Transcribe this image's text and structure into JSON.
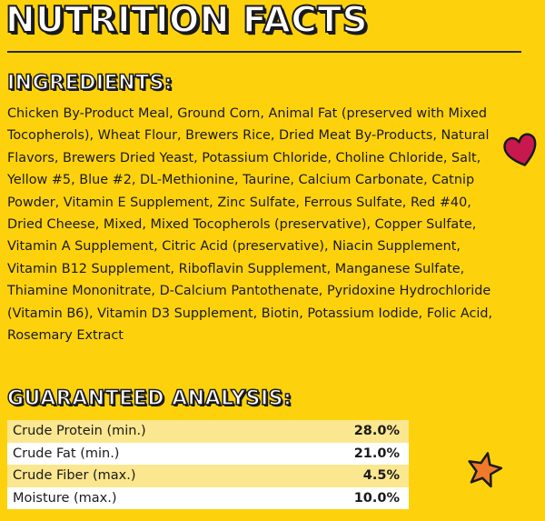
{
  "title": "NUTRITION FACTS",
  "ingredients": {
    "heading": "INGREDIENTS:",
    "text": "Chicken By-Product Meal, Ground Corn, Animal Fat (preserved with Mixed Tocopherols), Wheat Flour, Brewers Rice, Dried Meat By-Products, Natural Flavors, Brewers Dried Yeast, Potassium Chloride, Choline Chloride, Salt, Yellow #5, Blue #2, DL-Methionine, Taurine, Calcium Carbonate, Catnip Powder, Vitamin E Supplement, Zinc Sulfate, Ferrous Sulfate, Red #40, Dried Cheese, Mixed, Mixed Tocopherols (preservative), Copper Sulfate, Vitamin A Supplement, Citric Acid (preservative), Niacin Supplement, Vitamin B12 Supplement, Riboflavin Supplement, Manganese Sulfate, Thiamine Mononitrate, D-Calcium Pantothenate, Pyridoxine Hydrochloride (Vitamin B6), Vitamin D3 Supplement, Biotin, Potassium Iodide, Folic Acid, Rosemary Extract"
  },
  "analysis": {
    "heading": "GUARANTEED ANALYSIS:",
    "rows": [
      {
        "label": "Crude Protein (min.)",
        "value": "28.0%"
      },
      {
        "label": "Crude Fat (min.)",
        "value": "21.0%"
      },
      {
        "label": "Crude Fiber (max.)",
        "value": "4.5%"
      },
      {
        "label": "Moisture (max.)",
        "value": "10.0%"
      }
    ]
  },
  "colors": {
    "background": "#fdd20c",
    "row_highlight": "#fbe78f",
    "heart": "#c8194f",
    "star": "#f07a2a"
  },
  "icons": [
    "heart-icon",
    "star-icon"
  ]
}
